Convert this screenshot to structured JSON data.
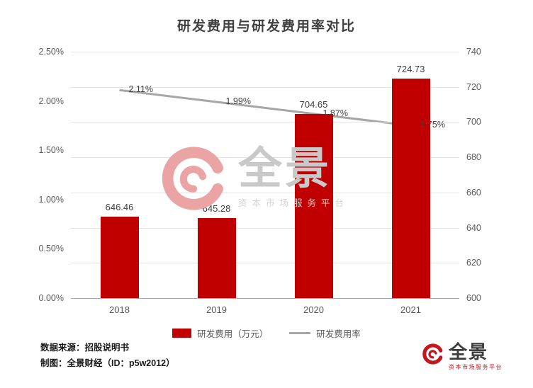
{
  "chart_data": {
    "type": "combo-bar-line",
    "title": "研发费用与研发费用率对比",
    "categories": [
      "2018",
      "2019",
      "2020",
      "2021"
    ],
    "series": [
      {
        "name": "研发费用（万元）",
        "type": "bar",
        "axis": "right",
        "color": "#c00000",
        "values": [
          646.46,
          645.28,
          704.65,
          724.73
        ],
        "labels": [
          "646.46",
          "645.28",
          "704.65",
          "724.73"
        ]
      },
      {
        "name": "研发费用率",
        "type": "line",
        "axis": "left",
        "color": "#a6a6a6",
        "values": [
          2.11,
          1.99,
          1.87,
          1.75
        ],
        "labels": [
          "2.11%",
          "1.99%",
          "1.87%",
          "1.75%"
        ]
      }
    ],
    "left_axis": {
      "min": 0,
      "max": 2.5,
      "ticks": [
        0,
        0.5,
        1.0,
        1.5,
        2.0,
        2.5
      ],
      "tick_labels": [
        "0.00%",
        "0.50%",
        "1.00%",
        "1.50%",
        "2.00%",
        "2.50%"
      ]
    },
    "right_axis": {
      "min": 600,
      "max": 740,
      "ticks": [
        600,
        620,
        640,
        660,
        680,
        700,
        720,
        740
      ],
      "tick_labels": [
        "600",
        "620",
        "640",
        "660",
        "680",
        "700",
        "720",
        "740"
      ]
    },
    "grid": "horizontal",
    "legend_position": "bottom"
  },
  "legend": {
    "bar_label": "研发费用（万元）",
    "line_label": "研发费用率"
  },
  "footer": {
    "source": "数据来源：招股说明书",
    "credit": "制图：全景财经（ID：p5w2012）"
  },
  "watermark": {
    "brand": "全景",
    "tagline": "资本市场服务平台"
  },
  "logo": {
    "brand": "全景",
    "tagline": "资本市场服务平台"
  },
  "colors": {
    "bar": "#c00000",
    "line": "#a6a6a6",
    "grid": "#e2e2e2",
    "axis": "#a6a6a6",
    "watermark_red": "#eaa4a4",
    "watermark_gray": "#c9c9c9",
    "logo_red": "#c5161d"
  }
}
